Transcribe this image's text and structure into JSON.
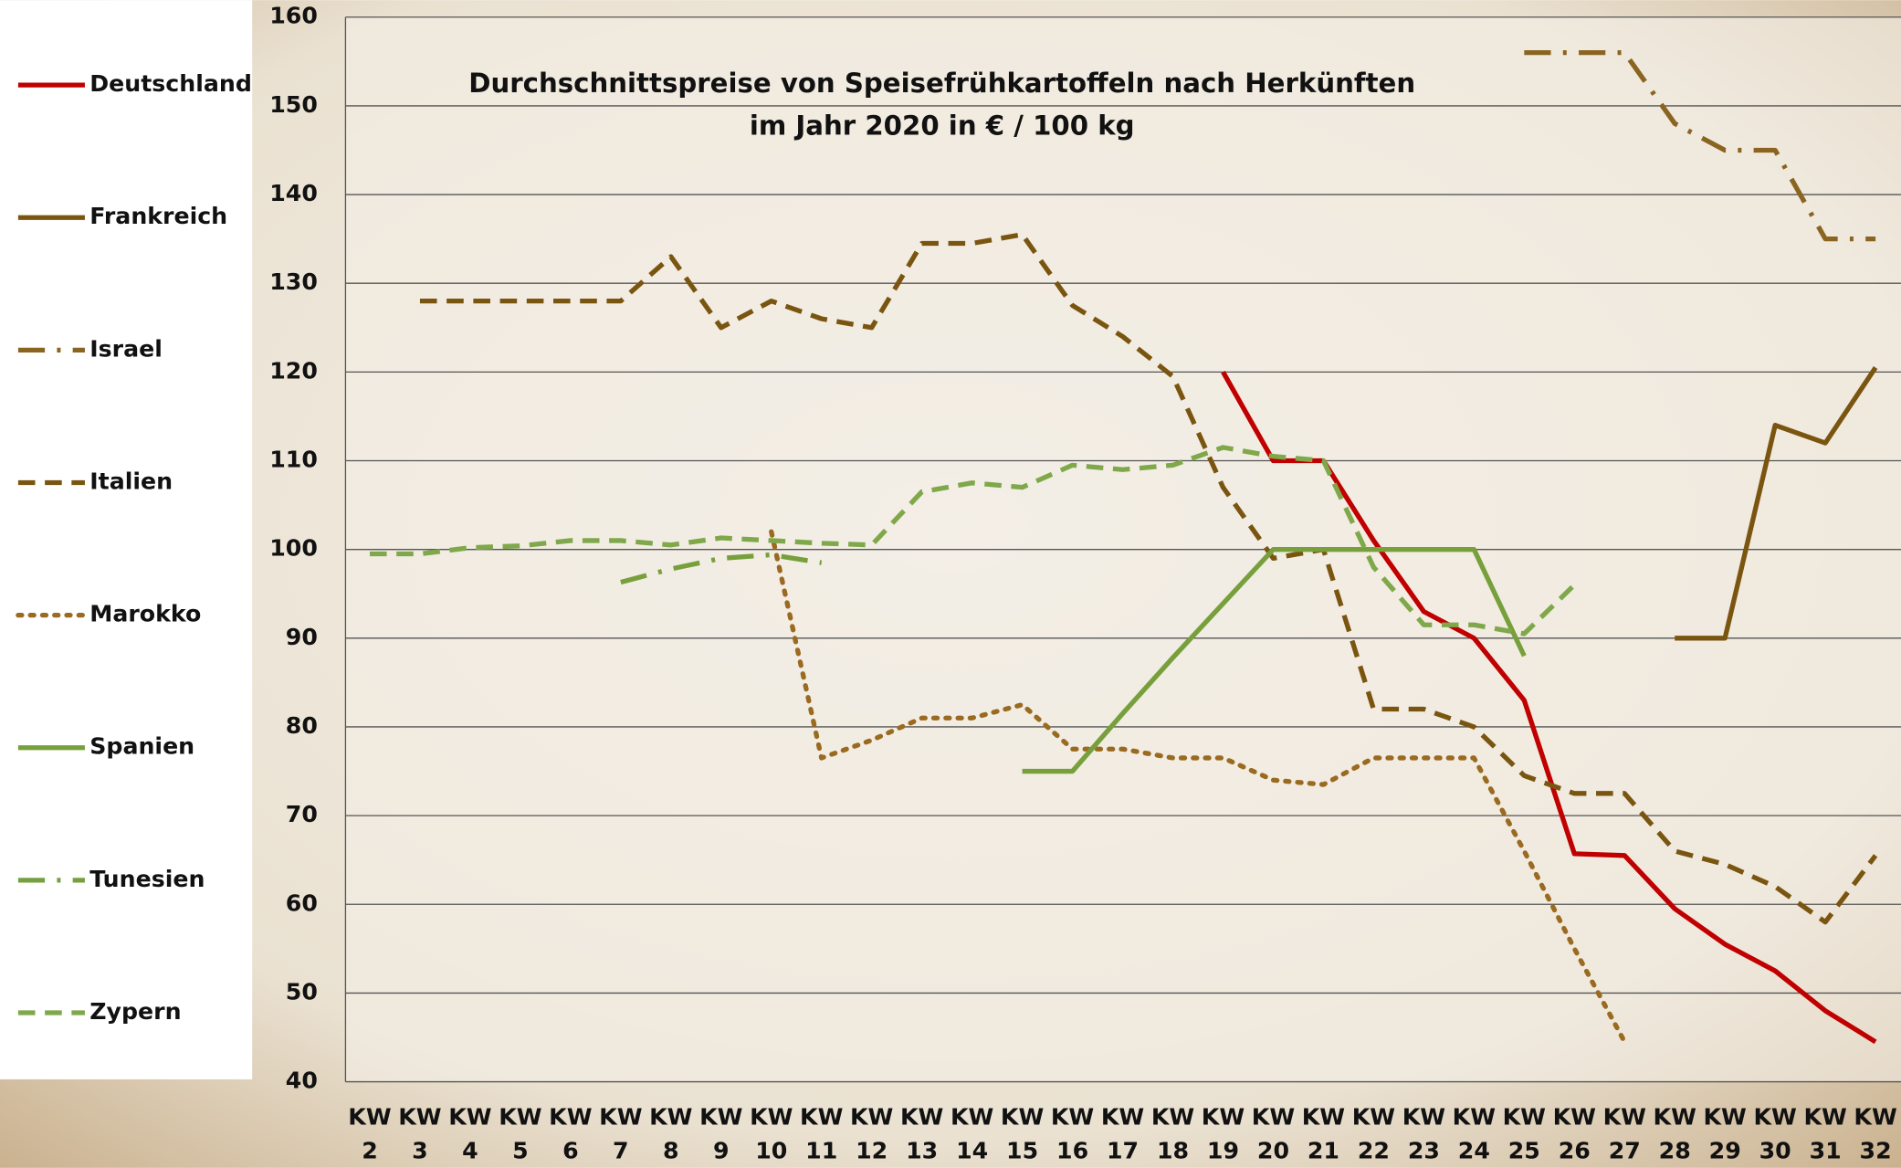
{
  "chart_data": {
    "type": "line",
    "title": "Durchschnittspreise von Speisefrühkartoffeln nach Herkünften",
    "subtitle": "im Jahr 2020 in € / 100 kg",
    "categories": [
      "KW 2",
      "KW 3",
      "KW 4",
      "KW 5",
      "KW 6",
      "KW 7",
      "KW 8",
      "KW 9",
      "KW 10",
      "KW 11",
      "KW 12",
      "KW 13",
      "KW 14",
      "KW 15",
      "KW 16",
      "KW 17",
      "KW 18",
      "KW 19",
      "KW 20",
      "KW 21",
      "KW 22",
      "KW 23",
      "KW 24",
      "KW 25",
      "KW 26",
      "KW 27",
      "KW 28",
      "KW 29",
      "KW 30",
      "KW 31",
      "KW 32"
    ],
    "ylim": [
      40,
      160
    ],
    "yticks": [
      40,
      50,
      60,
      70,
      80,
      90,
      100,
      110,
      120,
      130,
      140,
      150,
      160
    ],
    "grid": true,
    "legend": "left",
    "series": [
      {
        "name": "Deutschland",
        "color": "#c00000",
        "dash": "solid",
        "values": [
          null,
          null,
          null,
          null,
          null,
          null,
          null,
          null,
          null,
          null,
          null,
          null,
          null,
          null,
          null,
          null,
          null,
          120,
          110,
          110,
          101,
          93,
          90,
          83,
          65.7,
          65.5,
          59.5,
          55.5,
          52.5,
          48,
          44.5
        ]
      },
      {
        "name": "Frankreich",
        "color": "#7a5510",
        "dash": "solid",
        "values": [
          null,
          null,
          null,
          null,
          null,
          null,
          null,
          null,
          null,
          null,
          null,
          null,
          null,
          null,
          null,
          null,
          null,
          null,
          null,
          null,
          null,
          null,
          null,
          null,
          null,
          null,
          90,
          90,
          114,
          112,
          120.5
        ]
      },
      {
        "name": "Israel",
        "color": "#8a6420",
        "dash": "dashdot",
        "values": [
          null,
          null,
          null,
          null,
          null,
          null,
          null,
          null,
          null,
          null,
          null,
          null,
          null,
          null,
          null,
          null,
          null,
          null,
          null,
          null,
          null,
          null,
          null,
          156,
          156,
          156,
          148,
          145,
          145,
          135,
          135
        ]
      },
      {
        "name": "Italien",
        "color": "#7a5510",
        "dash": "dash",
        "values": [
          null,
          128,
          128,
          128,
          128,
          128,
          133,
          125,
          128,
          126,
          125,
          134.5,
          134.5,
          135.5,
          127.5,
          124,
          119.5,
          107,
          99,
          100,
          82,
          82,
          80,
          74.5,
          72.5,
          72.5,
          66,
          64.5,
          62,
          58,
          65.5
        ]
      },
      {
        "name": "Marokko",
        "color": "#9a6a20",
        "dash": "dot",
        "values": [
          null,
          null,
          null,
          null,
          null,
          null,
          null,
          null,
          102,
          76.5,
          78.5,
          81,
          81,
          82.5,
          77.5,
          77.5,
          76.5,
          76.5,
          74,
          73.5,
          76.5,
          76.5,
          76.5,
          66,
          55,
          44.5,
          null,
          null,
          null,
          null,
          null
        ]
      },
      {
        "name": "Spanien",
        "color": "#77a03c",
        "dash": "solid",
        "values": [
          null,
          null,
          null,
          null,
          null,
          null,
          null,
          null,
          null,
          null,
          null,
          null,
          null,
          75,
          75,
          81.5,
          87.8,
          93.9,
          100,
          100,
          100,
          100,
          100,
          88,
          null,
          null,
          null,
          null,
          null,
          null,
          null
        ]
      },
      {
        "name": "Tunesien",
        "color": "#77a03c",
        "dash": "dashdot",
        "values": [
          null,
          null,
          null,
          null,
          null,
          96.3,
          97.8,
          99,
          99.4,
          98.5,
          null,
          null,
          null,
          null,
          null,
          null,
          null,
          null,
          null,
          null,
          null,
          null,
          null,
          null,
          null,
          null,
          null,
          null,
          null,
          null,
          null
        ]
      },
      {
        "name": "Zypern",
        "color": "#7fa84a",
        "dash": "dash",
        "values": [
          99.5,
          99.5,
          100.2,
          100.4,
          101,
          101,
          100.5,
          101.3,
          101,
          100.7,
          100.5,
          106.5,
          107.5,
          107,
          109.5,
          109,
          109.5,
          111.5,
          110.5,
          110,
          98,
          91.5,
          91.5,
          90.5,
          96,
          null,
          null,
          null,
          null,
          null,
          null
        ]
      }
    ]
  }
}
